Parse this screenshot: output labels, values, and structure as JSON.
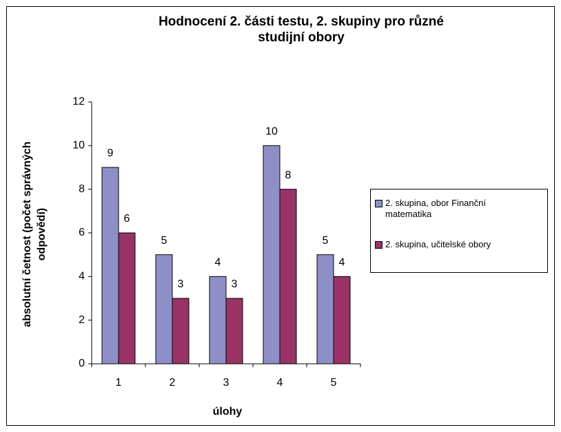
{
  "chart_data": {
    "type": "bar",
    "title": "Hodnocení 2. části testu, 2. skupiny pro různé studijní obory",
    "x_label": "úlohy",
    "y_label": "absolutní četnost (počet správných odpovědí)",
    "categories": [
      "1",
      "2",
      "3",
      "4",
      "5"
    ],
    "series": [
      {
        "name": "2. skupina, obor Finanční matematika",
        "color": "#8f8fc8",
        "values": [
          9,
          5,
          4,
          10,
          5
        ]
      },
      {
        "name": "2. skupina, učitelské obory",
        "color": "#993366",
        "values": [
          6,
          3,
          3,
          8,
          4
        ]
      }
    ],
    "ylim": [
      0,
      12
    ],
    "yticks": [
      0,
      2,
      4,
      6,
      8,
      10,
      12
    ],
    "legend": "right",
    "grid": false
  }
}
